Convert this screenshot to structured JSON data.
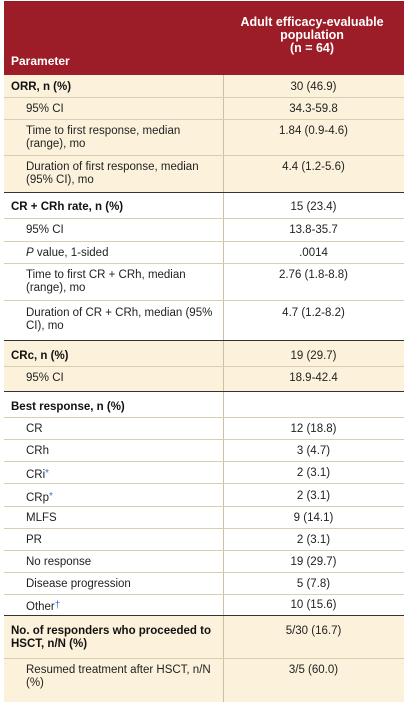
{
  "header": {
    "parameter": "Parameter",
    "population": "Adult efficacy-evaluable population",
    "n": "(n = 64)"
  },
  "sections": [
    {
      "title": "ORR, n (%)",
      "value": "30 (46.9)",
      "rows": [
        {
          "label": "95% CI",
          "value": "34.3-59.8"
        },
        {
          "label": "Time to first response, median (range), mo",
          "value": "1.84 (0.9-4.6)"
        },
        {
          "label": "Duration of first response, median (95% CI), mo",
          "value": "4.4 (1.2-5.6)"
        }
      ]
    },
    {
      "title": "CR + CRh rate, n (%)",
      "value": "15 (23.4)",
      "rows": [
        {
          "label": "95% CI",
          "value": "13.8-35.7"
        },
        {
          "label_italic": "P",
          "label": " value, 1-sided",
          "value": ".0014"
        },
        {
          "label": "Time to first CR + CRh, median (range), mo",
          "value": "2.76 (1.8-8.8)"
        },
        {
          "label": "Duration of CR + CRh, median (95% CI), mo",
          "value": "4.7 (1.2-8.2)"
        }
      ]
    },
    {
      "title": "CRc, n (%)",
      "value": "19 (29.7)",
      "rows": [
        {
          "label": "95% CI",
          "value": "18.9-42.4"
        }
      ]
    },
    {
      "title": "Best response, n (%)",
      "rows": [
        {
          "label": "CR",
          "value": "12 (18.8)"
        },
        {
          "label": "CRh",
          "value": "3 (4.7)"
        },
        {
          "label": "CRi",
          "footnote": "*",
          "value": "2 (3.1)"
        },
        {
          "label": "CRp",
          "footnote": "*",
          "value": "2 (3.1)"
        },
        {
          "label": "MLFS",
          "value": "9 (14.1)"
        },
        {
          "label": "PR",
          "value": "2 (3.1)"
        },
        {
          "label": "No response",
          "value": "19 (29.7)"
        },
        {
          "label": "Disease progression",
          "value": "5 (7.8)"
        },
        {
          "label": "Other",
          "footnote": "†",
          "value": "10 (15.6)"
        }
      ]
    },
    {
      "title": "No. of responders who proceeded to HSCT, n/N (%)",
      "value": "5/30 (16.7)",
      "rows": [
        {
          "label": "Resumed treatment after HSCT, n/N (%)",
          "value": "3/5 (60.0)"
        }
      ]
    }
  ],
  "colors": {
    "header_bg": "#9c1c27",
    "tan_bg": "#fcf2dc",
    "footnote": "#3a6fd8"
  }
}
